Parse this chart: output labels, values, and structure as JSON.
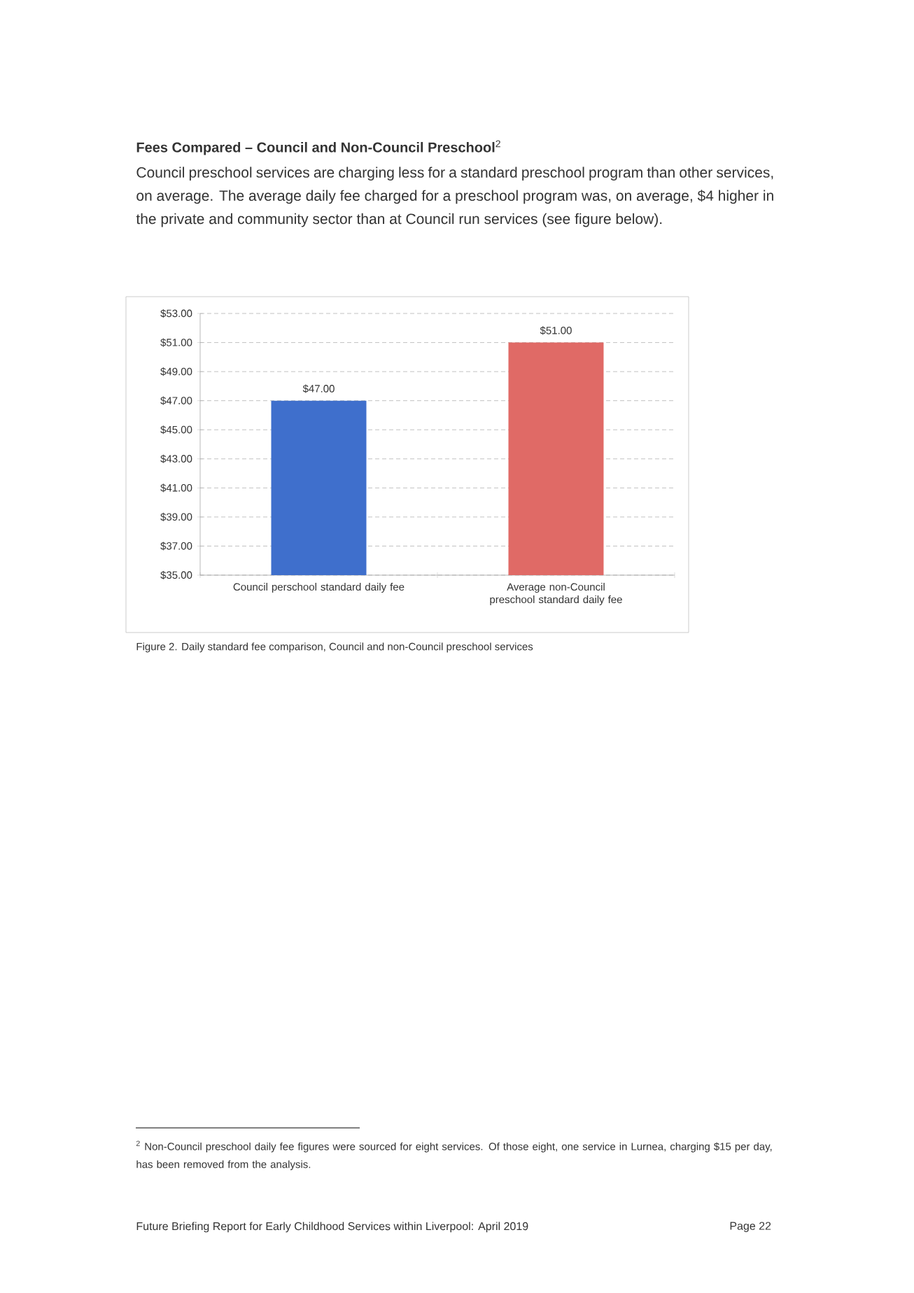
{
  "chart_data": {
    "type": "bar",
    "title": "**Fees Compared – Council and Non-Council Preschool**$^{2}$",
    "subtitle": "Council preschool services are charging less for a standard preschool program than other services, on average. The average daily fee charged for a preschool program was, on average, $4 higher in the private and community sector than at Council run services (see figure below).",
    "categories": [
      "Council perschool standard daily fee",
      "Average non-Council preschool standard daily fee"
    ],
    "values": [
      47,
      51
    ],
    "colors": [
      "#3f6fcc",
      "#e06a66"
    ],
    "value_labels": [
      "$47.00",
      "$51.00"
    ],
    "ylim": [
      35,
      53
    ],
    "yticks": [
      {
        "value": 35,
        "label": "$35.00"
      },
      {
        "value": 37,
        "label": "$37.00"
      },
      {
        "value": 39,
        "label": "$39.00"
      },
      {
        "value": 41,
        "label": "$41.00"
      },
      {
        "value": 43,
        "label": "$43.00"
      },
      {
        "value": 45,
        "label": "$45.00"
      },
      {
        "value": 47,
        "label": "$47.00"
      },
      {
        "value": 49,
        "label": "$49.00"
      },
      {
        "value": 51,
        "label": "$51.00"
      },
      {
        "value": 53,
        "label": "$53.00"
      }
    ],
    "grid": "y",
    "annotations": [
      "Figure 2. Daily standard fee comparison, Council and non-Council preschool services",
      "$^{2}$ Non-Council preschool daily fee figures were sourced for eight services. Of those eight, one service in Lurnea, charging $15 per day, has been removed from the analysis.",
      "Future Briefing Report for Early Childhood Services within Liverpool: April 2019",
      "Page 22"
    ]
  }
}
